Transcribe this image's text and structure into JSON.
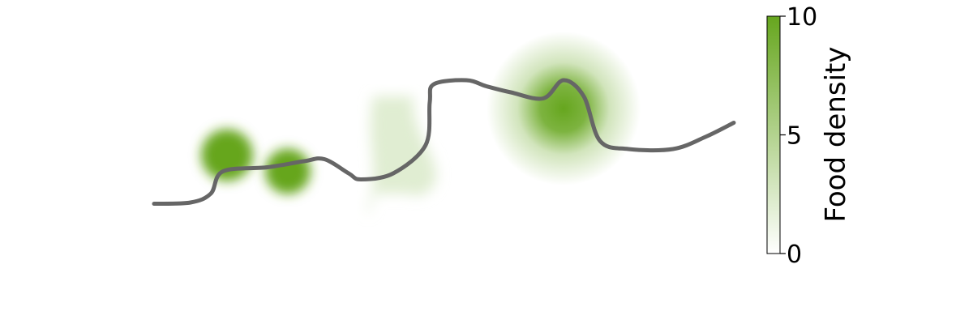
{
  "chart_data": {
    "type": "heatmap",
    "title": "",
    "colorbar": {
      "label": "Food density",
      "range": [
        0,
        10
      ],
      "ticks": [
        0,
        5,
        10
      ],
      "tick_labels": [
        "0",
        "5",
        "10"
      ],
      "color_low": "#ffffff",
      "color_high": "#66a61e"
    },
    "blobs": [
      {
        "name": "",
        "shape": "circle",
        "cx": 2.8,
        "cy": 2.15,
        "r": 0.32,
        "density": 10
      },
      {
        "name": "",
        "shape": "circle",
        "cx": 3.55,
        "cy": 1.75,
        "r": 0.28,
        "density": 10
      },
      {
        "name": "",
        "shape": "strip",
        "cx": 4.9,
        "cy": 2.4,
        "width": 0.8,
        "height": 2.4,
        "density": 2
      },
      {
        "name": "",
        "shape": "gaussian",
        "cx": 6.95,
        "cy": 3.3,
        "spread": 0.95,
        "density": 10
      }
    ],
    "path": {
      "color": "#666666",
      "points": [
        [
          1.9,
          0.95
        ],
        [
          2.35,
          0.98
        ],
        [
          2.6,
          1.2
        ],
        [
          2.75,
          1.75
        ],
        [
          3.3,
          1.85
        ],
        [
          3.75,
          2.0
        ],
        [
          4.0,
          2.05
        ],
        [
          4.3,
          1.7
        ],
        [
          4.45,
          1.55
        ],
        [
          4.85,
          1.7
        ],
        [
          5.25,
          2.4
        ],
        [
          5.3,
          3.45
        ],
        [
          5.35,
          3.9
        ],
        [
          5.75,
          4.0
        ],
        [
          6.0,
          3.85
        ],
        [
          6.3,
          3.7
        ],
        [
          6.7,
          3.55
        ],
        [
          6.95,
          4.0
        ],
        [
          7.2,
          3.6
        ],
        [
          7.4,
          2.5
        ],
        [
          7.75,
          2.3
        ],
        [
          8.3,
          2.3
        ],
        [
          8.7,
          2.6
        ],
        [
          9.05,
          2.95
        ]
      ]
    }
  }
}
